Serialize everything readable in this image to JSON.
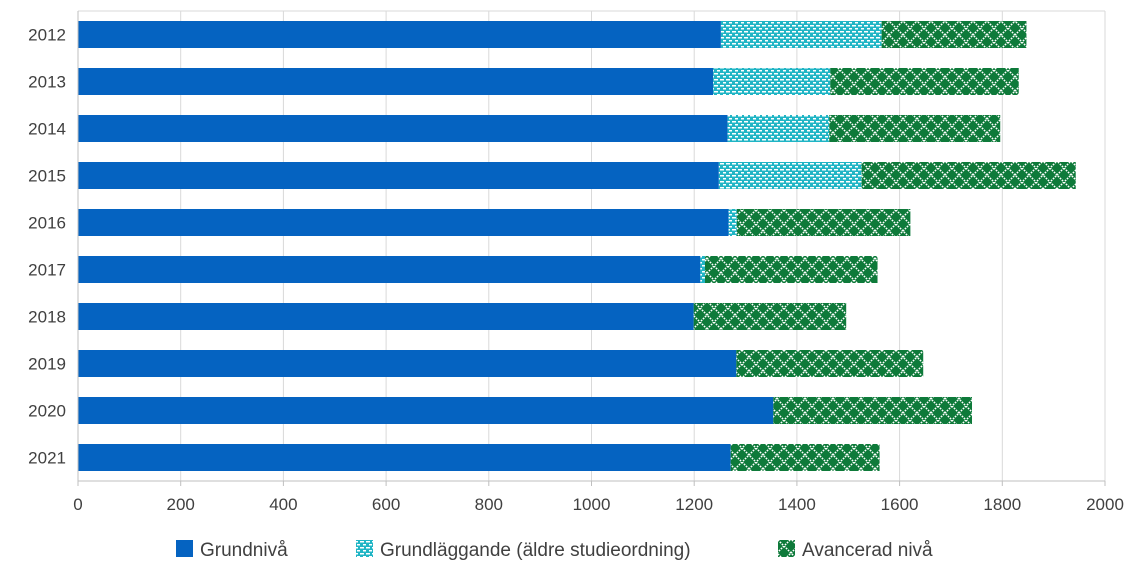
{
  "chart_data": {
    "type": "bar",
    "orientation": "horizontal",
    "stacked": true,
    "title": "",
    "xlabel": "",
    "ylabel": "",
    "categories": [
      "2012",
      "2013",
      "2014",
      "2015",
      "2016",
      "2017",
      "2018",
      "2019",
      "2020",
      "2021"
    ],
    "series": [
      {
        "name": "Grundnivå",
        "color": "#0563C1",
        "pattern": "solid",
        "values": [
          1252,
          1237,
          1265,
          1248,
          1267,
          1212,
          1199,
          1282,
          1354,
          1271
        ]
      },
      {
        "name": "Grundläggande (äldre studieordning)",
        "color": "#17A2B8",
        "pattern": "dashed-dots",
        "values": [
          313,
          228,
          198,
          278,
          16,
          9,
          0,
          0,
          0,
          0
        ]
      },
      {
        "name": "Avancerad nivå",
        "color": "#0E7A3A",
        "pattern": "crosshatch",
        "values": [
          282,
          367,
          333,
          417,
          338,
          336,
          297,
          364,
          387,
          290
        ]
      }
    ],
    "xlim": [
      0,
      2000
    ],
    "xticks": [
      "0",
      "200",
      "400",
      "600",
      "800",
      "1000",
      "1200",
      "1400",
      "1600",
      "1800",
      "2000"
    ],
    "grid": true,
    "legend_position": "bottom"
  }
}
